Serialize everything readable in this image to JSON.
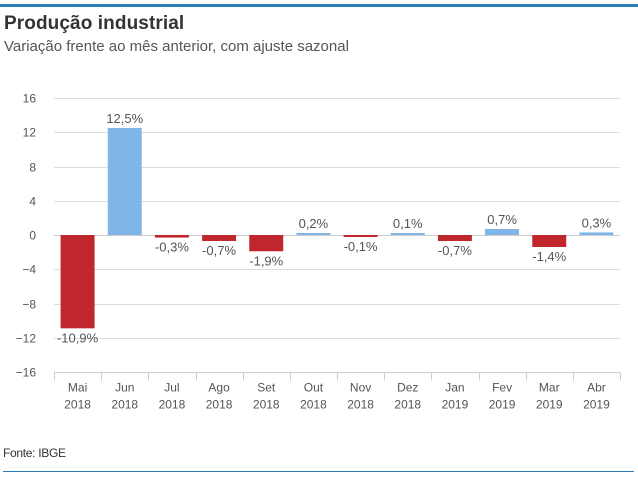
{
  "header": {
    "title": "Produção industrial",
    "subtitle": "Variação frente ao mês anterior, com ajuste sazonal"
  },
  "footer": {
    "source": "Fonte: IBGE"
  },
  "colors": {
    "accent_rule": "#2a7fba",
    "positive": "#7fb6e6",
    "negative": "#c0272d",
    "grid": "#dddddd",
    "text": "#555555"
  },
  "chart_data": {
    "type": "bar",
    "title": "Produção industrial",
    "subtitle": "Variação frente ao mês anterior, com ajuste sazonal",
    "xlabel": "",
    "ylabel": "",
    "ylim": [
      -16,
      16
    ],
    "yticks": [
      16,
      12,
      8,
      4,
      0,
      -4,
      -8,
      -12,
      -16
    ],
    "grid": true,
    "legend": "none",
    "categories": [
      [
        "Mai",
        "2018"
      ],
      [
        "Jun",
        "2018"
      ],
      [
        "Jul",
        "2018"
      ],
      [
        "Ago",
        "2018"
      ],
      [
        "Set",
        "2018"
      ],
      [
        "Out",
        "2018"
      ],
      [
        "Nov",
        "2018"
      ],
      [
        "Dez",
        "2018"
      ],
      [
        "Jan",
        "2019"
      ],
      [
        "Fev",
        "2019"
      ],
      [
        "Mar",
        "2019"
      ],
      [
        "Abr",
        "2019"
      ]
    ],
    "values": [
      -10.9,
      12.5,
      -0.3,
      -0.7,
      -1.9,
      0.2,
      -0.1,
      0.1,
      -0.7,
      0.7,
      -1.4,
      0.3
    ],
    "labels": [
      "-10,9%",
      "12,5%",
      "-0,3%",
      "-0,7%",
      "-1,9%",
      "0,2%",
      "-0,1%",
      "0,1%",
      "-0,7%",
      "0,7%",
      "-1,4%",
      "0,3%"
    ]
  }
}
